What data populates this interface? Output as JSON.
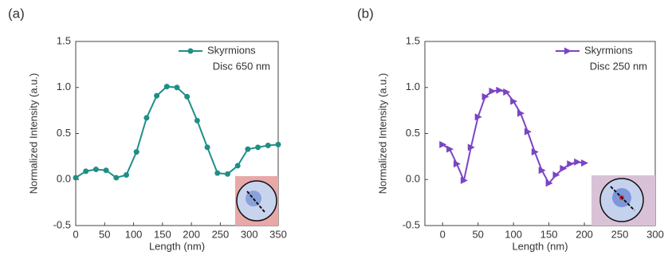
{
  "chart_data": [
    {
      "type": "line",
      "panel_label": "(a)",
      "xlabel": "Length (nm)",
      "ylabel": "Normalized Intensity (a.u.)",
      "annotation": "Disc 650 nm",
      "legend": "upper right",
      "x": [
        0,
        17.5,
        35,
        52.5,
        70,
        87.5,
        105,
        122.5,
        140,
        157.5,
        175,
        192.5,
        210,
        227.5,
        245,
        262.5,
        280,
        297.5,
        315,
        332.5,
        350
      ],
      "series": [
        {
          "name": "Skyrmions",
          "color": "#1f8f86",
          "marker": "circle",
          "values": [
            0.02,
            0.09,
            0.11,
            0.1,
            0.02,
            0.05,
            0.3,
            0.67,
            0.91,
            1.01,
            1.0,
            0.9,
            0.64,
            0.35,
            0.07,
            0.06,
            0.15,
            0.33,
            0.35,
            0.37,
            0.38
          ]
        }
      ],
      "xlim": [
        0,
        350
      ],
      "xticks": [
        0,
        50,
        100,
        150,
        200,
        250,
        300,
        350
      ],
      "ylim": [
        -0.5,
        1.5
      ],
      "yticks": [
        -0.5,
        {
          "value": 0,
          "label": "0.0"
        },
        0.5,
        {
          "value": 1,
          "label": "1.0"
        },
        1.5
      ]
    },
    {
      "type": "line",
      "panel_label": "(b)",
      "xlabel": "Length (nm)",
      "ylabel": "Normalized Intensity (a.u.)",
      "annotation": "Disc 250 nm",
      "legend": "upper right",
      "x": [
        0,
        10,
        20,
        30,
        40,
        50,
        60,
        70,
        80,
        90,
        100,
        110,
        120,
        130,
        140,
        150,
        160,
        170,
        180,
        190,
        200
      ],
      "series": [
        {
          "name": "Skyrmions",
          "color": "#7b44c4",
          "marker": "triangle-right",
          "values": [
            0.38,
            0.33,
            0.17,
            -0.01,
            0.35,
            0.68,
            0.9,
            0.96,
            0.97,
            0.95,
            0.85,
            0.72,
            0.52,
            0.3,
            0.1,
            -0.04,
            0.05,
            0.12,
            0.17,
            0.19,
            0.18
          ]
        }
      ],
      "xlim": [
        -25,
        300
      ],
      "xticks": [
        0,
        50,
        100,
        150,
        200,
        250,
        300
      ],
      "ylim": [
        -0.5,
        1.5
      ],
      "yticks": [
        -0.5,
        {
          "value": 0,
          "label": "0.0"
        },
        0.5,
        {
          "value": 1,
          "label": "1.0"
        },
        1.5
      ]
    }
  ]
}
